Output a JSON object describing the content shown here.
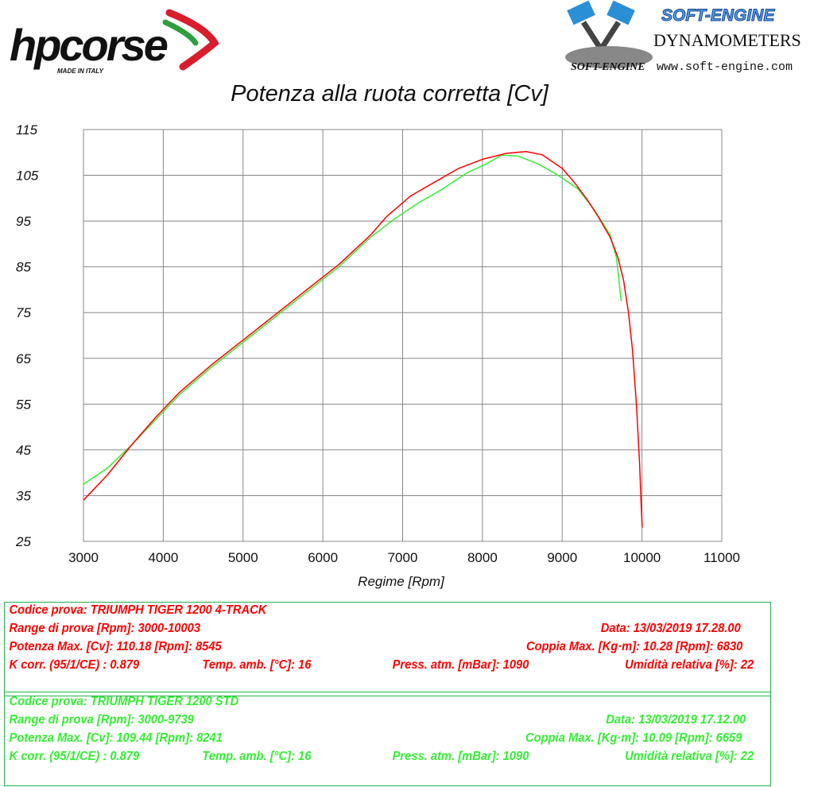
{
  "header": {
    "hp_logo": {
      "text": "hpcorse",
      "tagline": "MADE IN ITALY"
    },
    "se_logo": {
      "brand": "SOFT-ENGINE",
      "title": "DYNAMOMETERS",
      "url": "www.soft-engine.com",
      "mini": "SOFT-ENGINE"
    }
  },
  "chart_data": {
    "type": "line",
    "title": "Potenza alla ruota corretta [Cv]",
    "xlabel": "Regime [Rpm]",
    "ylabel": "",
    "xlim": [
      3000,
      11000
    ],
    "ylim": [
      25,
      115
    ],
    "xticks": [
      "3000",
      "4000",
      "5000",
      "6000",
      "7000",
      "8000",
      "9000",
      "10000",
      "11000"
    ],
    "yticks": [
      "115",
      "105",
      "95",
      "85",
      "75",
      "65",
      "55",
      "45",
      "35",
      "25"
    ],
    "grid": true,
    "series": [
      {
        "color": "#ff0000",
        "points": [
          [
            3000,
            34
          ],
          [
            3300,
            39.5
          ],
          [
            3600,
            46
          ],
          [
            3900,
            52
          ],
          [
            4200,
            57.5
          ],
          [
            4600,
            63.5
          ],
          [
            5000,
            69
          ],
          [
            5400,
            74.5
          ],
          [
            5800,
            80
          ],
          [
            6200,
            85.5
          ],
          [
            6600,
            92
          ],
          [
            6800,
            96
          ],
          [
            7100,
            100.5
          ],
          [
            7400,
            103.5
          ],
          [
            7700,
            106.5
          ],
          [
            8000,
            108.5
          ],
          [
            8300,
            109.8
          ],
          [
            8545,
            110.2
          ],
          [
            8750,
            109.5
          ],
          [
            9000,
            106.5
          ],
          [
            9150,
            103.5
          ],
          [
            9300,
            100
          ],
          [
            9450,
            96
          ],
          [
            9600,
            91.5
          ],
          [
            9700,
            87
          ],
          [
            9770,
            82
          ],
          [
            9830,
            75
          ],
          [
            9880,
            67
          ],
          [
            9930,
            55
          ],
          [
            9970,
            42
          ],
          [
            9990,
            33
          ],
          [
            10003,
            28
          ]
        ]
      },
      {
        "color": "#33ee33",
        "points": [
          [
            3000,
            37.5
          ],
          [
            3300,
            41
          ],
          [
            3600,
            46
          ],
          [
            3900,
            51.5
          ],
          [
            4200,
            57
          ],
          [
            4600,
            63
          ],
          [
            5000,
            68.5
          ],
          [
            5400,
            74
          ],
          [
            5800,
            79.5
          ],
          [
            6200,
            85
          ],
          [
            6600,
            91.5
          ],
          [
            6900,
            95.5
          ],
          [
            7200,
            99
          ],
          [
            7500,
            102
          ],
          [
            7800,
            105.5
          ],
          [
            8050,
            107.5
          ],
          [
            8241,
            109.4
          ],
          [
            8450,
            109.2
          ],
          [
            8700,
            107.5
          ],
          [
            8950,
            105
          ],
          [
            9200,
            102
          ],
          [
            9400,
            97.5
          ],
          [
            9600,
            92
          ],
          [
            9680,
            87
          ],
          [
            9739,
            77.5
          ]
        ]
      }
    ]
  },
  "legend_boxes": [
    {
      "color": "#ff0000",
      "codice": "Codice prova: TRIUMPH TIGER 1200 4-TRACK",
      "range": "Range di prova [Rpm]: 3000-10003",
      "data": "Data: 13/03/2019   17.28.00",
      "potenza": "Potenza Max. [Cv]: 110.18   [Rpm]: 8545",
      "coppia": "Coppia Max. [Kg·m]: 10.28   [Rpm]: 6830",
      "kcorr": "K corr. (95/1/CE) : 0.879",
      "temp": "Temp. amb. [°C]: 16",
      "press": "Press. atm. [mBar]: 1090",
      "umid": "Umidità relativa [%]: 22"
    },
    {
      "color": "#33ee33",
      "codice": "Codice prova: TRIUMPH TIGER 1200 STD",
      "range": "Range di prova [Rpm]: 3000-9739",
      "data": "Data: 13/03/2019   17.12.00",
      "potenza": "Potenza Max. [Cv]: 109.44   [Rpm]: 8241",
      "coppia": "Coppia Max. [Kg·m]: 10.09   [Rpm]: 6659",
      "kcorr": "K corr. (95/1/CE) : 0.879",
      "temp": "Temp. amb. [°C]: 16",
      "press": "Press. atm. [mBar]: 1090",
      "umid": "Umidità relativa [%]: 22"
    }
  ]
}
